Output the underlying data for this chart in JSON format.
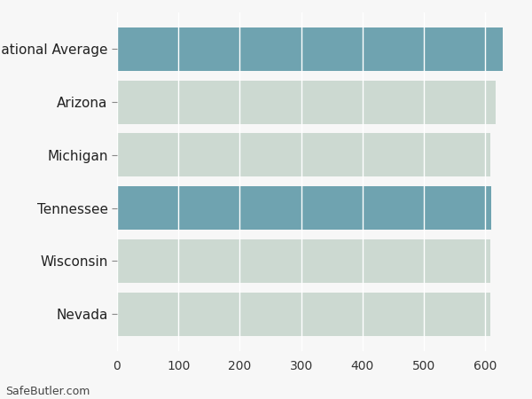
{
  "categories": [
    "Nevada",
    "Wisconsin",
    "Tennessee",
    "Michigan",
    "Arizona",
    "National Average"
  ],
  "values": [
    608,
    608,
    610,
    608,
    617,
    628
  ],
  "bar_colors": [
    "#ccd9d1",
    "#ccd9d1",
    "#6fa3b0",
    "#ccd9d1",
    "#ccd9d1",
    "#6fa3b0"
  ],
  "background_color": "#f7f7f7",
  "plot_background": "#f7f7f7",
  "xlim": [
    0,
    650
  ],
  "xticks": [
    0,
    100,
    200,
    300,
    400,
    500,
    600
  ],
  "grid_color": "#ffffff",
  "bar_height": 0.82,
  "tick_fontsize": 10,
  "label_fontsize": 11,
  "footnote": "SafeButler.com",
  "footnote_fontsize": 9
}
